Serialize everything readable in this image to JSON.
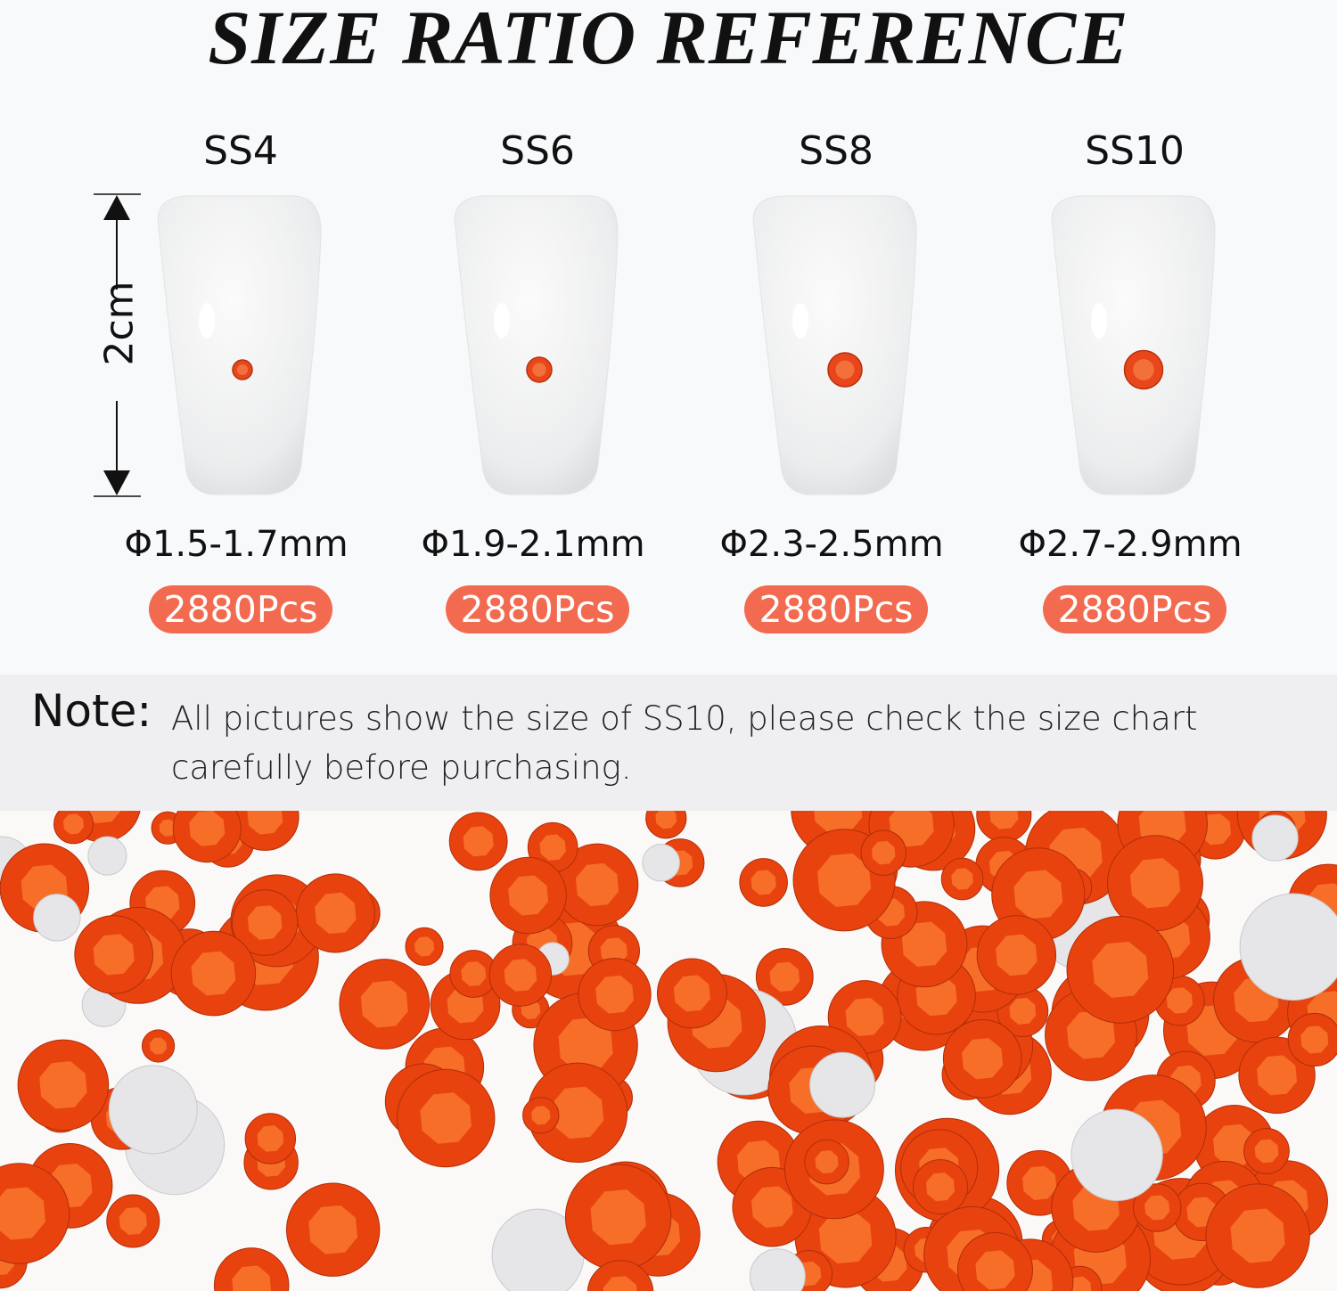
{
  "title": "SIZE RATIO REFERENCE",
  "ruler_label": "2cm",
  "sizes": [
    {
      "name": "SS4",
      "diameter": "Φ1.5-1.7mm",
      "count": "2880Pcs"
    },
    {
      "name": "SS6",
      "diameter": "Φ1.9-2.1mm",
      "count": "2880Pcs"
    },
    {
      "name": "SS8",
      "diameter": "Φ2.3-2.5mm",
      "count": "2880Pcs"
    },
    {
      "name": "SS10",
      "diameter": "Φ2.7-2.9mm",
      "count": "2880Pcs"
    }
  ],
  "note": {
    "label": "Note:",
    "text": "All pictures show the size of SS10, please check the size chart carefully before purchasing."
  },
  "colors": {
    "accent": "#f26a4f",
    "gem": "#f04a12",
    "note_bg": "#efeff1"
  }
}
